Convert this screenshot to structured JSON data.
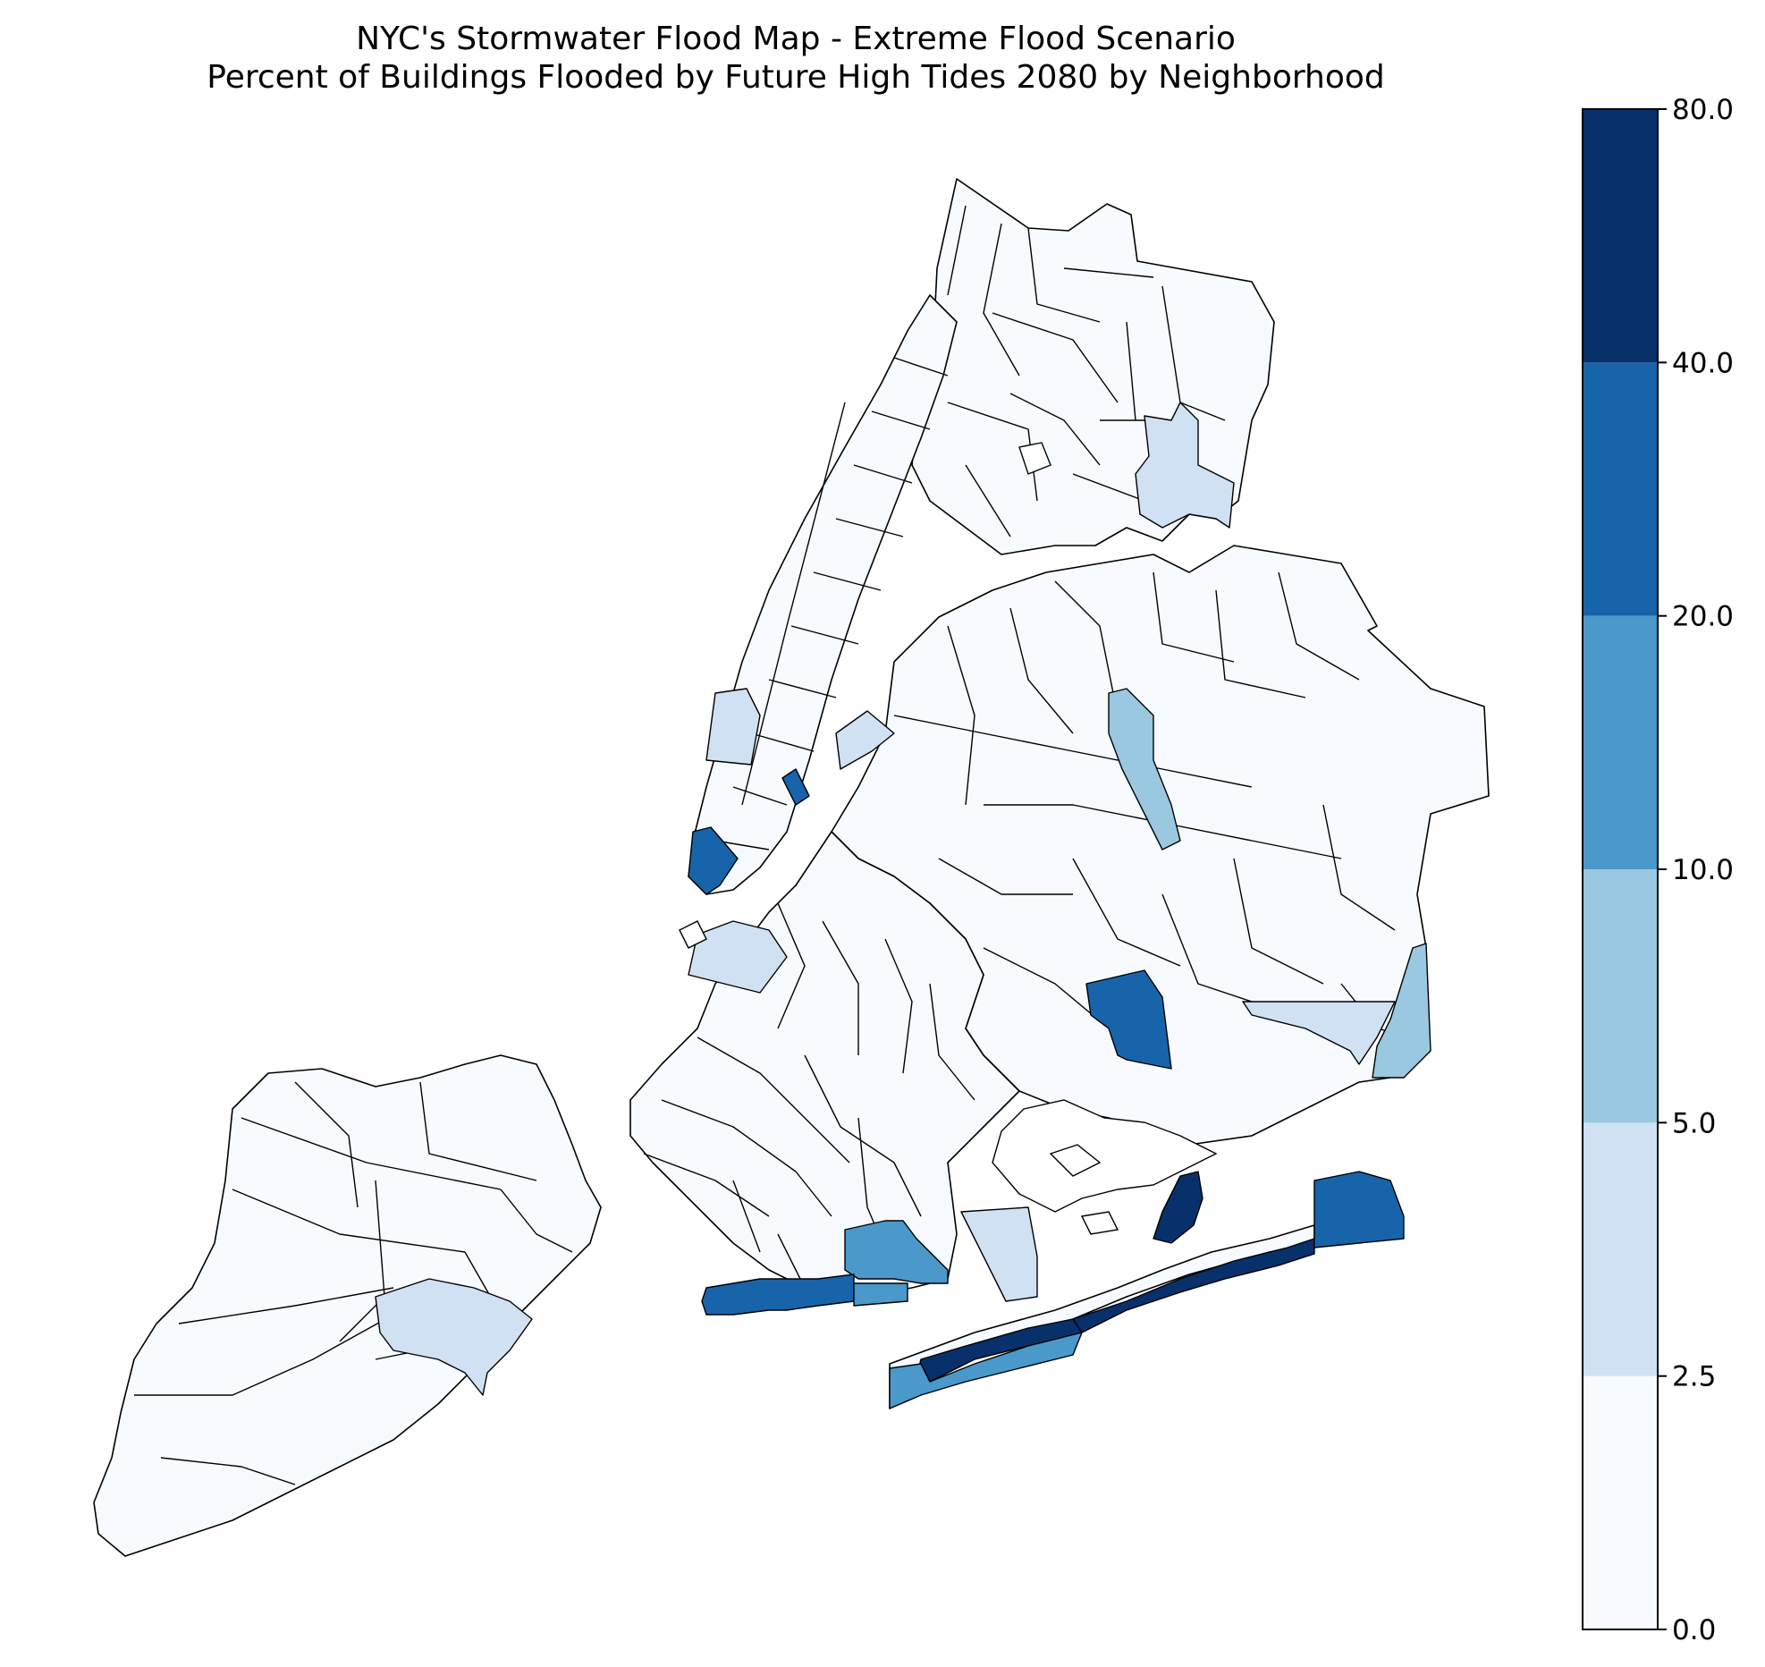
{
  "title_line1": "NYC's Stormwater Flood Map - Extreme Flood Scenario",
  "title_line2": "Percent of Buildings Flooded by Future High Tides 2080 by Neighborhood",
  "colorbar": {
    "ticks": [
      "0.0",
      "2.5",
      "5.0",
      "10.0",
      "20.0",
      "40.0",
      "80.0"
    ],
    "bins": [
      {
        "from": 0.0,
        "to": 2.5,
        "color": "#f7fbff"
      },
      {
        "from": 2.5,
        "to": 5.0,
        "color": "#cfe1f2"
      },
      {
        "from": 5.0,
        "to": 10.0,
        "color": "#9ac8e0"
      },
      {
        "from": 10.0,
        "to": 20.0,
        "color": "#4b98ca"
      },
      {
        "from": 20.0,
        "to": 40.0,
        "color": "#1764ab"
      },
      {
        "from": 40.0,
        "to": 80.0,
        "color": "#08306b"
      }
    ]
  },
  "map": {
    "regions": [
      {
        "name": "Bronx",
        "bin": 0
      },
      {
        "name": "Manhattan",
        "bin": 0
      },
      {
        "name": "Queens",
        "bin": 0
      },
      {
        "name": "Brooklyn",
        "bin": 0
      },
      {
        "name": "Staten Island",
        "bin": 0
      }
    ]
  }
}
